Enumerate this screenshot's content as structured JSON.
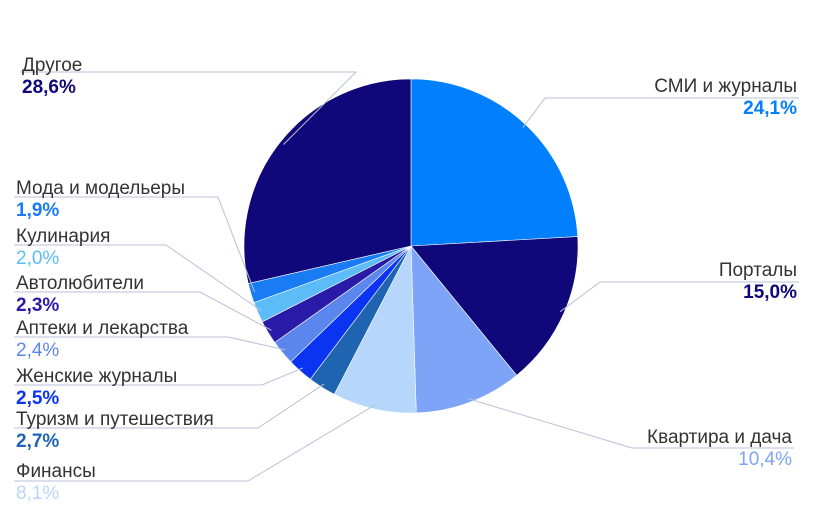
{
  "chart_data": {
    "type": "pie",
    "title": "",
    "slices": [
      {
        "label": "СМИ и журналы",
        "value": 24.1,
        "value_label": "24,1%",
        "color": "#0080ff"
      },
      {
        "label": "Порталы",
        "value": 15.0,
        "value_label": "15,0%",
        "color": "#10087a"
      },
      {
        "label": "Квартира и дача",
        "value": 10.4,
        "value_label": "10,4%",
        "color": "#7ea4f8"
      },
      {
        "label": "Финансы",
        "value": 8.1,
        "value_label": "8,1%",
        "color": "#b6d6fb"
      },
      {
        "label": "Туризм и путешествия",
        "value": 2.7,
        "value_label": "2,7%",
        "color": "#1f64b0"
      },
      {
        "label": "Женские журналы",
        "value": 2.5,
        "value_label": "2,5%",
        "color": "#0b34f2"
      },
      {
        "label": "Аптеки и лекарства",
        "value": 2.4,
        "value_label": "2,4%",
        "color": "#5b86ee"
      },
      {
        "label": "Автолюбители",
        "value": 2.3,
        "value_label": "2,3%",
        "color": "#2a1aa8"
      },
      {
        "label": "Кулинария",
        "value": 2.0,
        "value_label": "2,0%",
        "color": "#5bbcf8"
      },
      {
        "label": "Мода и модельеры",
        "value": 1.9,
        "value_label": "1,9%",
        "color": "#1a7cf5"
      },
      {
        "label": "Другое",
        "value": 28.6,
        "value_label": "28,6%",
        "color": "#10087a"
      }
    ]
  }
}
